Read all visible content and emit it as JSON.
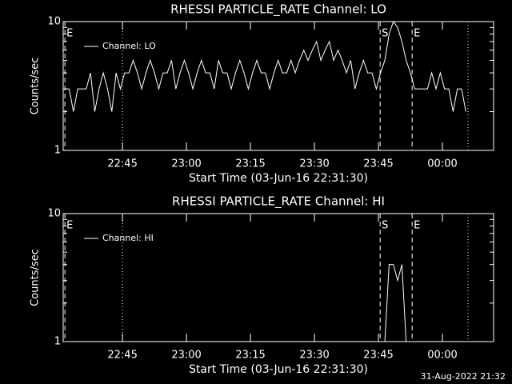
{
  "chart_data": [
    {
      "type": "line",
      "title": "RHESSI PARTICLE_RATE Channel: LO",
      "ylabel": "Counts/sec",
      "xlabel": "Start Time (03-Jun-16 22:31:30)",
      "x": [
        0,
        1,
        2,
        3,
        4,
        5,
        6,
        7,
        8,
        9,
        10,
        11,
        12,
        13,
        14,
        15,
        16,
        17,
        18,
        19,
        20,
        21,
        22,
        23,
        24,
        25,
        26,
        27,
        28,
        29,
        30,
        31,
        32,
        33,
        34,
        35,
        36,
        37,
        38,
        39,
        40,
        41,
        42,
        43,
        44,
        45,
        46,
        47,
        48,
        49,
        50,
        51,
        52,
        53,
        54,
        55,
        56,
        57,
        58,
        59,
        60,
        61,
        62,
        63,
        64,
        65,
        66,
        67,
        68,
        69,
        70,
        71,
        72,
        73,
        74,
        75,
        76,
        77,
        78,
        79,
        80,
        81,
        82,
        83,
        84,
        85,
        86,
        87,
        88,
        89,
        90,
        91,
        92,
        93,
        94
      ],
      "series": [
        {
          "name": "Channel: LO",
          "color": "#ffffff",
          "values": [
            3,
            3,
            2,
            3,
            3,
            3,
            4,
            2,
            3,
            4,
            3,
            2,
            4,
            3,
            4,
            4,
            5,
            4,
            3,
            4,
            5,
            4,
            3,
            4,
            4,
            5,
            3,
            4,
            5,
            4,
            3,
            4,
            5,
            4,
            4,
            3,
            5,
            4,
            4,
            3,
            4,
            5,
            4,
            3,
            4,
            5,
            4,
            4,
            3,
            4,
            5,
            4,
            4,
            5,
            4,
            5,
            6,
            5,
            6,
            7,
            5,
            6,
            7,
            5,
            6,
            5,
            4,
            5,
            3,
            4,
            5,
            4,
            4,
            3,
            4,
            5,
            8,
            10,
            9,
            7,
            5,
            4,
            3,
            3,
            3,
            3,
            4,
            3,
            4,
            3,
            3,
            2,
            3,
            3,
            2
          ]
        }
      ],
      "xlim": [
        -0.4,
        100.5
      ],
      "xticks": [
        {
          "value": 13.5,
          "label": "22:45"
        },
        {
          "value": 28.5,
          "label": "23:00"
        },
        {
          "value": 43.5,
          "label": "23:15"
        },
        {
          "value": 58.5,
          "label": "23:30"
        },
        {
          "value": 73.5,
          "label": "23:45"
        },
        {
          "value": 88.5,
          "label": "00:00"
        }
      ],
      "ylim": [
        1,
        10
      ],
      "yticks": [
        1,
        10
      ],
      "yminorticks": [
        2,
        3,
        4,
        5,
        6,
        7,
        8,
        9
      ],
      "log_y": true,
      "legend": "upper left",
      "vlines": [
        {
          "x": 0,
          "style": "dashed",
          "label": "E"
        },
        {
          "x": 13.5,
          "style": "dotted"
        },
        {
          "x": 73.9,
          "style": "dashed",
          "label": "S"
        },
        {
          "x": 81.4,
          "style": "dashed",
          "label": "E"
        },
        {
          "x": 94.5,
          "style": "dotted"
        }
      ]
    },
    {
      "type": "line",
      "title": "RHESSI PARTICLE_RATE Channel: HI",
      "ylabel": "Counts/sec",
      "xlabel": "Start Time (03-Jun-16 22:31:30)",
      "x": [
        0,
        1,
        2,
        3,
        4,
        5,
        6,
        7,
        8,
        9,
        10,
        11,
        12,
        13,
        14,
        15,
        16,
        17,
        18,
        19,
        20,
        21,
        22,
        23,
        24,
        25,
        26,
        27,
        28,
        29,
        30,
        31,
        32,
        33,
        34,
        35,
        36,
        37,
        38,
        39,
        40,
        41,
        42,
        43,
        44,
        45,
        46,
        47,
        48,
        49,
        50,
        51,
        52,
        53,
        54,
        55,
        56,
        57,
        58,
        59,
        60,
        61,
        62,
        63,
        64,
        65,
        66,
        67,
        68,
        69,
        70,
        71,
        72,
        73,
        74,
        75,
        76,
        77,
        78,
        79,
        80,
        81,
        82,
        83,
        84,
        85,
        86,
        87,
        88,
        89,
        90,
        91,
        92,
        93,
        94
      ],
      "series": [
        {
          "name": "Channel: HI",
          "color": "#ffffff",
          "values": [
            null,
            null,
            null,
            null,
            null,
            null,
            null,
            null,
            null,
            null,
            null,
            null,
            null,
            null,
            null,
            null,
            null,
            null,
            null,
            null,
            null,
            null,
            null,
            null,
            null,
            null,
            null,
            null,
            null,
            null,
            null,
            null,
            null,
            null,
            null,
            null,
            null,
            null,
            null,
            null,
            null,
            null,
            null,
            null,
            null,
            null,
            null,
            null,
            null,
            null,
            null,
            null,
            null,
            null,
            null,
            null,
            null,
            null,
            null,
            null,
            null,
            null,
            null,
            null,
            null,
            null,
            null,
            null,
            null,
            null,
            null,
            null,
            null,
            null,
            null,
            1,
            4,
            4,
            3,
            4,
            1,
            null,
            null,
            null,
            null,
            null,
            null,
            null,
            null,
            null,
            null,
            null,
            null,
            null,
            null
          ]
        }
      ],
      "xlim": [
        -0.4,
        100.5
      ],
      "xticks": [
        {
          "value": 13.5,
          "label": "22:45"
        },
        {
          "value": 28.5,
          "label": "23:00"
        },
        {
          "value": 43.5,
          "label": "23:15"
        },
        {
          "value": 58.5,
          "label": "23:30"
        },
        {
          "value": 73.5,
          "label": "23:45"
        },
        {
          "value": 88.5,
          "label": "00:00"
        }
      ],
      "ylim": [
        1,
        10
      ],
      "yticks": [
        1,
        10
      ],
      "yminorticks": [
        2,
        3,
        4,
        5,
        6,
        7,
        8,
        9
      ],
      "log_y": true,
      "legend": "upper left",
      "vlines": [
        {
          "x": 0,
          "style": "dashed",
          "label": "E"
        },
        {
          "x": 13.5,
          "style": "dotted"
        },
        {
          "x": 73.9,
          "style": "dashed",
          "label": "S"
        },
        {
          "x": 81.4,
          "style": "dashed",
          "label": "E"
        },
        {
          "x": 94.5,
          "style": "dotted"
        }
      ]
    }
  ],
  "footer": "31-Aug-2022 21:32"
}
